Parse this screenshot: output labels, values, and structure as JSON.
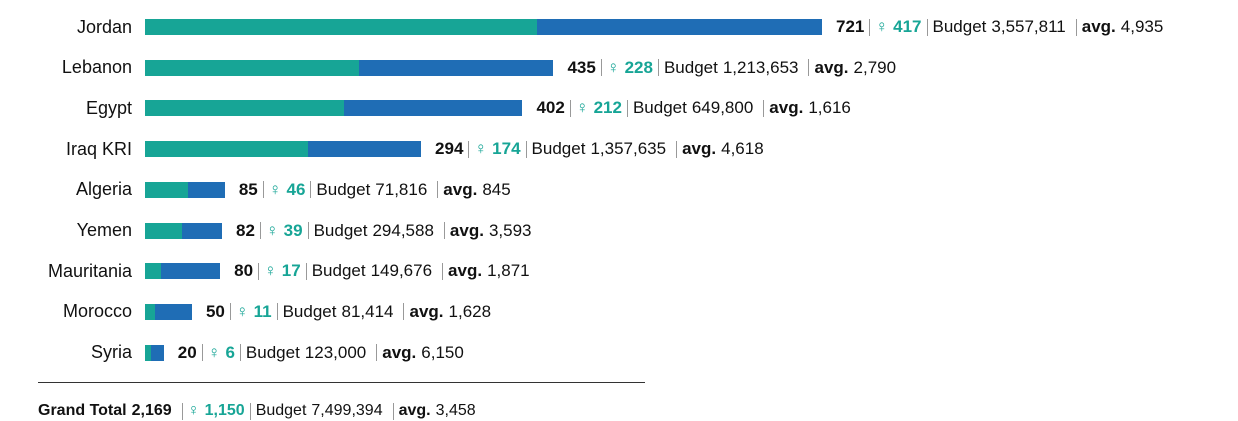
{
  "chart_data": {
    "type": "bar",
    "categories": [
      "Jordan",
      "Lebanon",
      "Egypt",
      "Iraq KRI",
      "Algeria",
      "Yemen",
      "Mauritania",
      "Morocco",
      "Syria"
    ],
    "series": [
      {
        "name": "Total",
        "color": "#1f6db5",
        "values": [
          721,
          435,
          402,
          294,
          85,
          82,
          80,
          50,
          20
        ]
      },
      {
        "name": "♀",
        "color": "#17a596",
        "values": [
          417,
          228,
          212,
          174,
          46,
          39,
          17,
          11,
          6
        ]
      }
    ],
    "budget_text": "Budget",
    "avg_text": "avg.",
    "budget": {
      "values": [
        3557811,
        1213653,
        649800,
        1357635,
        71816,
        294588,
        149676,
        81414,
        123000
      ],
      "value_labels": [
        "3,557,811",
        "1,213,653",
        "649,800",
        "1,357,635",
        "71,816",
        "294,588",
        "149,676",
        "81,414",
        "123,000"
      ]
    },
    "avg": {
      "values": [
        4935,
        2790,
        1616,
        4618,
        845,
        3593,
        1871,
        1628,
        6150
      ],
      "value_labels": [
        "4,935",
        "2,790",
        "1,616",
        "4,618",
        "845",
        "3,593",
        "1,871",
        "1,628",
        "6,150"
      ]
    },
    "grand_total": {
      "label": "Grand Total",
      "total": 2169,
      "total_label": "2,169",
      "female": 1150,
      "female_label": "1,150",
      "budget": 7499394,
      "budget_label": "7,499,394",
      "avg": 3458,
      "avg_label": "3,458"
    }
  }
}
